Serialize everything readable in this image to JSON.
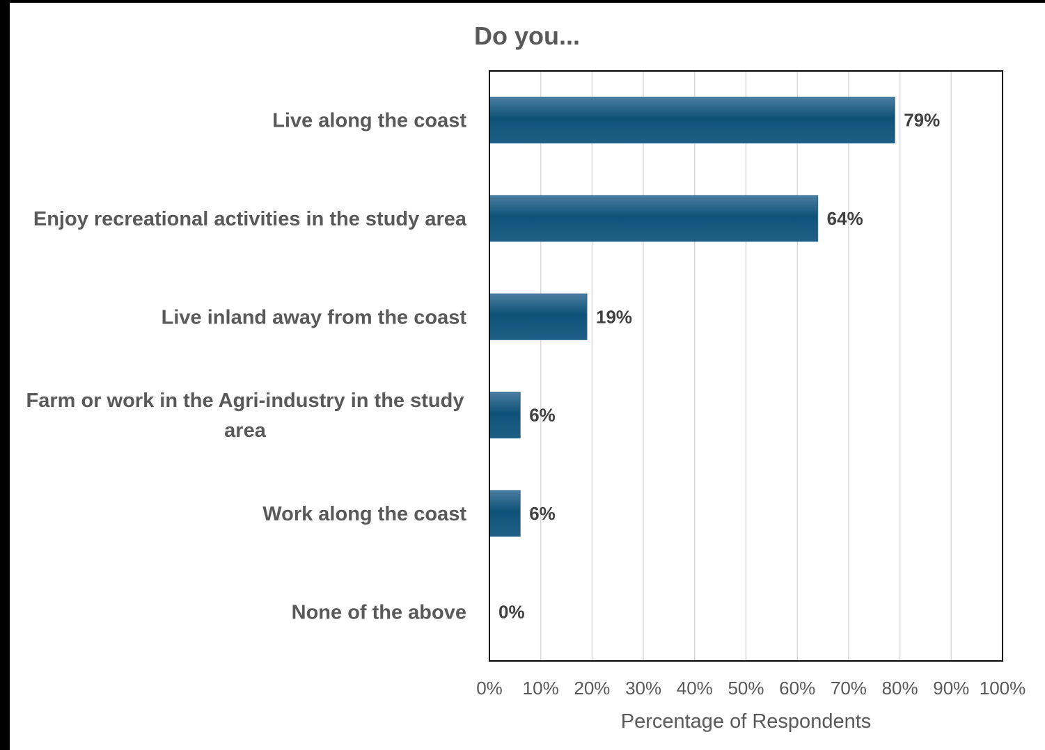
{
  "chart_data": {
    "type": "bar",
    "orientation": "horizontal",
    "title": "Do you...",
    "xlabel": "Percentage of Respondents",
    "ylabel": "",
    "categories": [
      "Live along the coast",
      "Enjoy recreational activities in the study area",
      "Live inland away from the coast",
      "Farm or work in the Agri-industry in the study area",
      "Work along the coast",
      "None of the above"
    ],
    "category_lines": [
      [
        "Live along the coast"
      ],
      [
        "Enjoy recreational activities in the study area"
      ],
      [
        "Live inland away from the coast"
      ],
      [
        "Farm or work in the Agri-industry in the study",
        "area"
      ],
      [
        "Work along the coast"
      ],
      [
        "None of the above"
      ]
    ],
    "values": [
      79,
      64,
      19,
      6,
      6,
      0
    ],
    "data_labels": [
      "79%",
      "64%",
      "19%",
      "6%",
      "6%",
      "0%"
    ],
    "xlim": [
      0,
      100
    ],
    "xticks": [
      0,
      10,
      20,
      30,
      40,
      50,
      60,
      70,
      80,
      90,
      100
    ],
    "xtick_labels": [
      "0%",
      "10%",
      "20%",
      "30%",
      "40%",
      "50%",
      "60%",
      "70%",
      "80%",
      "90%",
      "100%"
    ],
    "grid": "vertical",
    "legend": "none",
    "bar_color": "#1f5f86",
    "bar_color_light": "#4a7ea0",
    "bar_color_dark": "#0f5278"
  }
}
